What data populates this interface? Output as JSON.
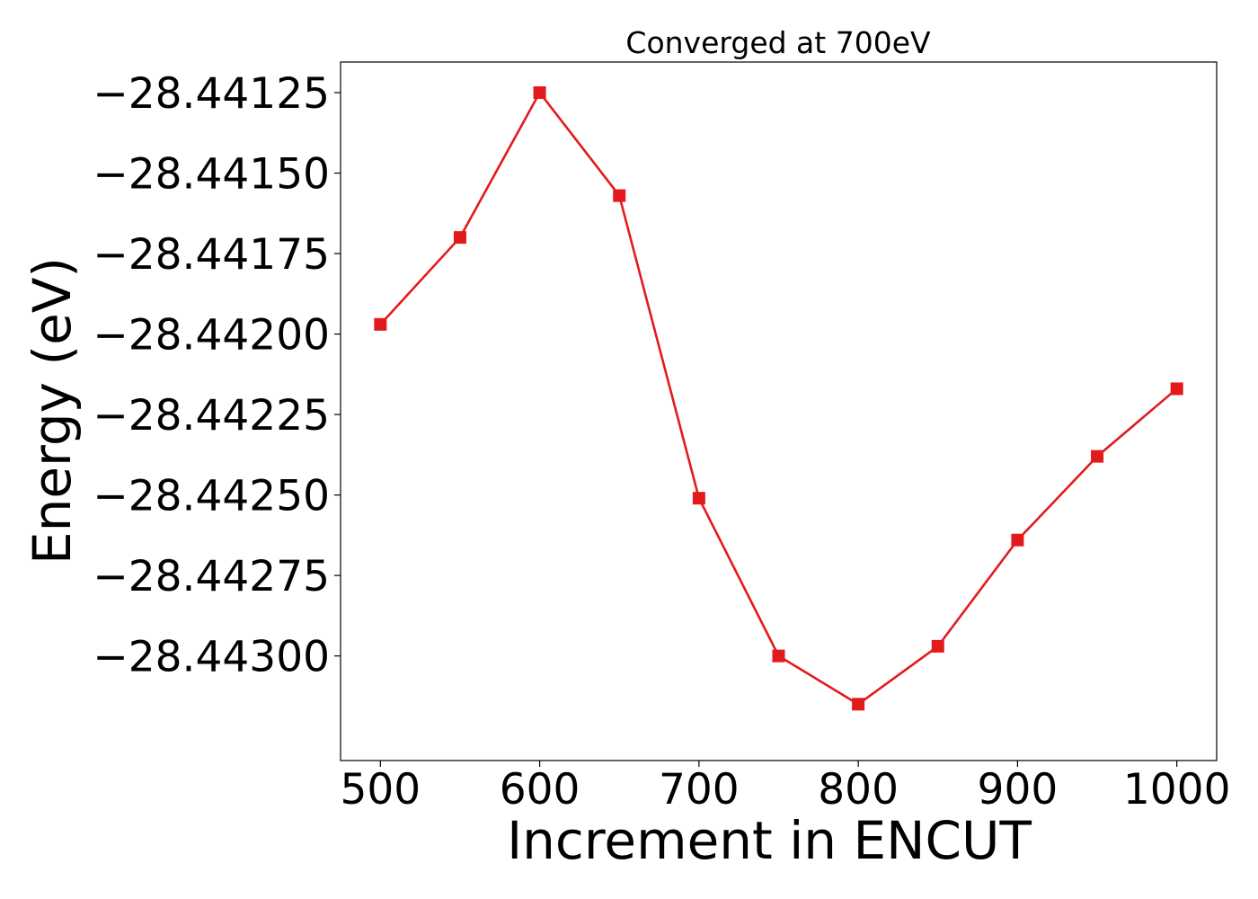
{
  "chart_data": {
    "type": "line",
    "title": "Converged at 700eV",
    "xlabel": "Increment in ENCUT",
    "ylabel": "Energy (eV)",
    "x": [
      500,
      550,
      600,
      650,
      700,
      750,
      800,
      850,
      900,
      950,
      1000
    ],
    "series": [
      {
        "values": [
          -28.44197,
          -28.4417,
          -28.44125,
          -28.44157,
          -28.44251,
          -28.443,
          -28.44315,
          -28.44297,
          -28.44264,
          -28.44238,
          -28.44217
        ],
        "color": "#e31a1c",
        "marker": "square"
      }
    ],
    "xticks": [
      500,
      600,
      700,
      800,
      900,
      1000
    ],
    "xtick_labels": [
      "500",
      "600",
      "700",
      "800",
      "900",
      "1000"
    ],
    "yticks": [
      -28.44125,
      -28.4415,
      -28.44175,
      -28.442,
      -28.44225,
      -28.4425,
      -28.44275,
      -28.443
    ],
    "ytick_labels": [
      "−28.44125",
      "−28.44150",
      "−28.44175",
      "−28.44200",
      "−28.44225",
      "−28.44250",
      "−28.44275",
      "−28.44300"
    ],
    "xlim": [
      475,
      1025
    ],
    "ylim": [
      -28.443325,
      -28.441155
    ],
    "grid": false,
    "legend": "none"
  }
}
